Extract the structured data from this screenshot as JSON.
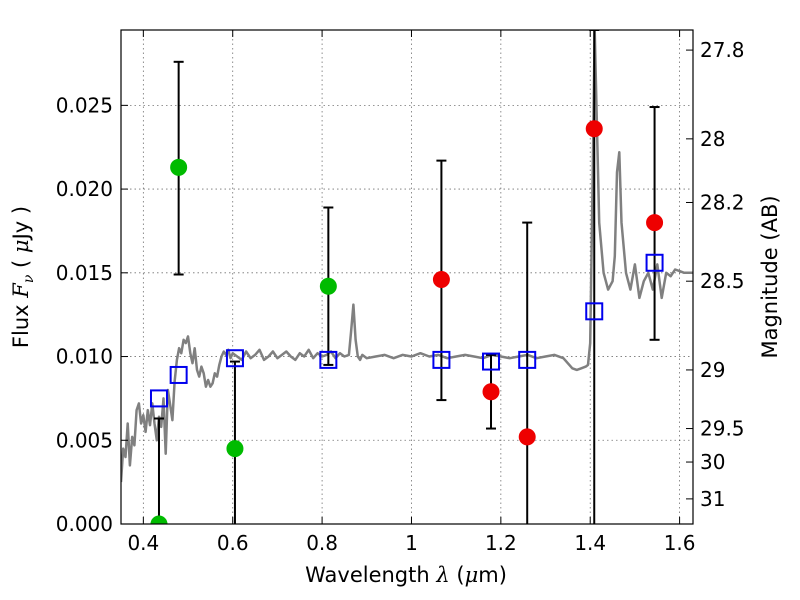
{
  "chart_data": {
    "type": "scatter",
    "xlabel_prefix": "Wavelength",
    "xlabel_symbol": "λ",
    "xlabel_unit_open": "(",
    "xlabel_unit_mu": "μ",
    "xlabel_unit_rest": "m)",
    "ylabel_prefix": "Flux",
    "ylabel_symbol": "F",
    "ylabel_sub": "ν",
    "ylabel_unit_open": "(",
    "ylabel_unit_mu": "μ",
    "ylabel_unit_rest": "Jy",
    "ylabel_unit_close": ")",
    "y2label": "Magnitude (AB)",
    "xlim": [
      0.35,
      1.63
    ],
    "ylim": [
      0.0,
      0.0295
    ],
    "grid": true,
    "x_ticks": [
      0.4,
      0.6,
      0.8,
      1.0,
      1.2,
      1.4,
      1.6
    ],
    "x_tick_labels": [
      "0.4",
      "0.6",
      "0.8",
      "1",
      "1.2",
      "1.4",
      "1.6"
    ],
    "y_ticks": [
      0.0,
      0.005,
      0.01,
      0.015,
      0.02,
      0.025
    ],
    "y_tick_labels": [
      "0.000",
      "0.005",
      "0.010",
      "0.015",
      "0.020",
      "0.025"
    ],
    "y2_ticks": [
      {
        "label": "27.8",
        "flux": 0.0283
      },
      {
        "label": "28",
        "flux": 0.023
      },
      {
        "label": "28.2",
        "flux": 0.0192
      },
      {
        "label": "28.5",
        "flux": 0.0145
      },
      {
        "label": "29",
        "flux": 0.0092
      },
      {
        "label": "29.5",
        "flux": 0.0057
      },
      {
        "label": "30",
        "flux": 0.0037
      },
      {
        "label": "31",
        "flux": 0.0015
      }
    ],
    "series": [
      {
        "name": "template_spectrum",
        "type": "line",
        "color": "#808080",
        "x": [
          0.35,
          0.355,
          0.36,
          0.365,
          0.37,
          0.375,
          0.38,
          0.385,
          0.39,
          0.395,
          0.4,
          0.405,
          0.41,
          0.415,
          0.42,
          0.425,
          0.43,
          0.435,
          0.44,
          0.445,
          0.45,
          0.455,
          0.46,
          0.465,
          0.47,
          0.475,
          0.48,
          0.485,
          0.49,
          0.495,
          0.5,
          0.505,
          0.51,
          0.515,
          0.52,
          0.525,
          0.53,
          0.535,
          0.54,
          0.545,
          0.55,
          0.555,
          0.56,
          0.565,
          0.57,
          0.575,
          0.58,
          0.585,
          0.59,
          0.595,
          0.6,
          0.61,
          0.62,
          0.63,
          0.64,
          0.65,
          0.66,
          0.67,
          0.68,
          0.69,
          0.7,
          0.71,
          0.72,
          0.73,
          0.74,
          0.75,
          0.76,
          0.77,
          0.78,
          0.79,
          0.8,
          0.81,
          0.82,
          0.83,
          0.84,
          0.85,
          0.86,
          0.865,
          0.87,
          0.875,
          0.88,
          0.885,
          0.89,
          0.9,
          0.92,
          0.94,
          0.96,
          0.98,
          1.0,
          1.02,
          1.04,
          1.06,
          1.08,
          1.1,
          1.12,
          1.14,
          1.16,
          1.18,
          1.2,
          1.22,
          1.24,
          1.26,
          1.28,
          1.3,
          1.32,
          1.34,
          1.36,
          1.37,
          1.38,
          1.39,
          1.395,
          1.4,
          1.405,
          1.41,
          1.42,
          1.43,
          1.44,
          1.45,
          1.455,
          1.46,
          1.465,
          1.47,
          1.48,
          1.49,
          1.5,
          1.51,
          1.52,
          1.53,
          1.54,
          1.55,
          1.56,
          1.57,
          1.58,
          1.59,
          1.6,
          1.61,
          1.62,
          1.63
        ],
        "y": [
          0.0025,
          0.0045,
          0.004,
          0.006,
          0.0035,
          0.0052,
          0.0047,
          0.0068,
          0.0072,
          0.006,
          0.0065,
          0.0055,
          0.0068,
          0.0059,
          0.0072,
          0.006,
          0.005,
          0.0064,
          0.0058,
          0.0075,
          0.0042,
          0.008,
          0.0071,
          0.0062,
          0.0085,
          0.0098,
          0.0105,
          0.0102,
          0.011,
          0.0108,
          0.0112,
          0.0102,
          0.0096,
          0.0105,
          0.0092,
          0.0088,
          0.0094,
          0.009,
          0.0082,
          0.0086,
          0.0082,
          0.0084,
          0.009,
          0.0088,
          0.0095,
          0.01,
          0.0103,
          0.0101,
          0.0104,
          0.0099,
          0.0102,
          0.01,
          0.0098,
          0.0103,
          0.0099,
          0.0101,
          0.0104,
          0.0098,
          0.01,
          0.0103,
          0.0099,
          0.0101,
          0.0103,
          0.01,
          0.0098,
          0.0102,
          0.01,
          0.0104,
          0.0099,
          0.0102,
          0.01,
          0.0101,
          0.0103,
          0.0099,
          0.0102,
          0.01,
          0.0101,
          0.0115,
          0.0131,
          0.011,
          0.01,
          0.0098,
          0.0101,
          0.0099,
          0.01,
          0.0101,
          0.0099,
          0.0101,
          0.01,
          0.0102,
          0.01,
          0.0101,
          0.0099,
          0.01,
          0.0101,
          0.01,
          0.0099,
          0.0101,
          0.01,
          0.0099,
          0.01,
          0.0101,
          0.0099,
          0.01,
          0.0101,
          0.0099,
          0.0093,
          0.0092,
          0.0093,
          0.0094,
          0.0095,
          0.0108,
          0.02,
          0.0295,
          0.018,
          0.015,
          0.014,
          0.0145,
          0.016,
          0.021,
          0.0222,
          0.018,
          0.015,
          0.014,
          0.0155,
          0.0135,
          0.0145,
          0.015,
          0.014,
          0.0155,
          0.0135,
          0.015,
          0.0148,
          0.0152,
          0.0151,
          0.015,
          0.015,
          0.015
        ]
      },
      {
        "name": "green_detections",
        "type": "scatter",
        "color": "#00bb00",
        "marker": "circle",
        "points": [
          {
            "x": 0.435,
            "y": 0.0,
            "err_lo": 0.0,
            "err_hi": 0.0063
          },
          {
            "x": 0.479,
            "y": 0.0213,
            "err_lo": 0.0149,
            "err_hi": 0.0276
          },
          {
            "x": 0.605,
            "y": 0.0045,
            "err_lo": 0.0,
            "err_hi": 0.0097
          },
          {
            "x": 0.814,
            "y": 0.0142,
            "err_lo": 0.0095,
            "err_hi": 0.0189
          }
        ]
      },
      {
        "name": "red_detections",
        "type": "scatter",
        "color": "#ee0000",
        "marker": "circle",
        "points": [
          {
            "x": 1.067,
            "y": 0.0146,
            "err_lo": 0.0074,
            "err_hi": 0.0217
          },
          {
            "x": 1.178,
            "y": 0.0079,
            "err_lo": 0.0057,
            "err_hi": 0.0101
          },
          {
            "x": 1.259,
            "y": 0.0052,
            "err_lo": 0.0,
            "err_hi": 0.018
          },
          {
            "x": 1.409,
            "y": 0.0236,
            "err_lo": 0.0,
            "err_hi": 0.0295
          },
          {
            "x": 1.544,
            "y": 0.018,
            "err_lo": 0.011,
            "err_hi": 0.0249
          }
        ]
      },
      {
        "name": "model_photometry",
        "type": "scatter",
        "color": "#0000ee",
        "marker": "open-square",
        "points": [
          {
            "x": 0.435,
            "y": 0.0075
          },
          {
            "x": 0.479,
            "y": 0.0089
          },
          {
            "x": 0.605,
            "y": 0.0099
          },
          {
            "x": 0.814,
            "y": 0.0098
          },
          {
            "x": 1.067,
            "y": 0.0098
          },
          {
            "x": 1.178,
            "y": 0.0097
          },
          {
            "x": 1.259,
            "y": 0.0098
          },
          {
            "x": 1.409,
            "y": 0.0127
          },
          {
            "x": 1.544,
            "y": 0.0156
          }
        ]
      }
    ]
  }
}
